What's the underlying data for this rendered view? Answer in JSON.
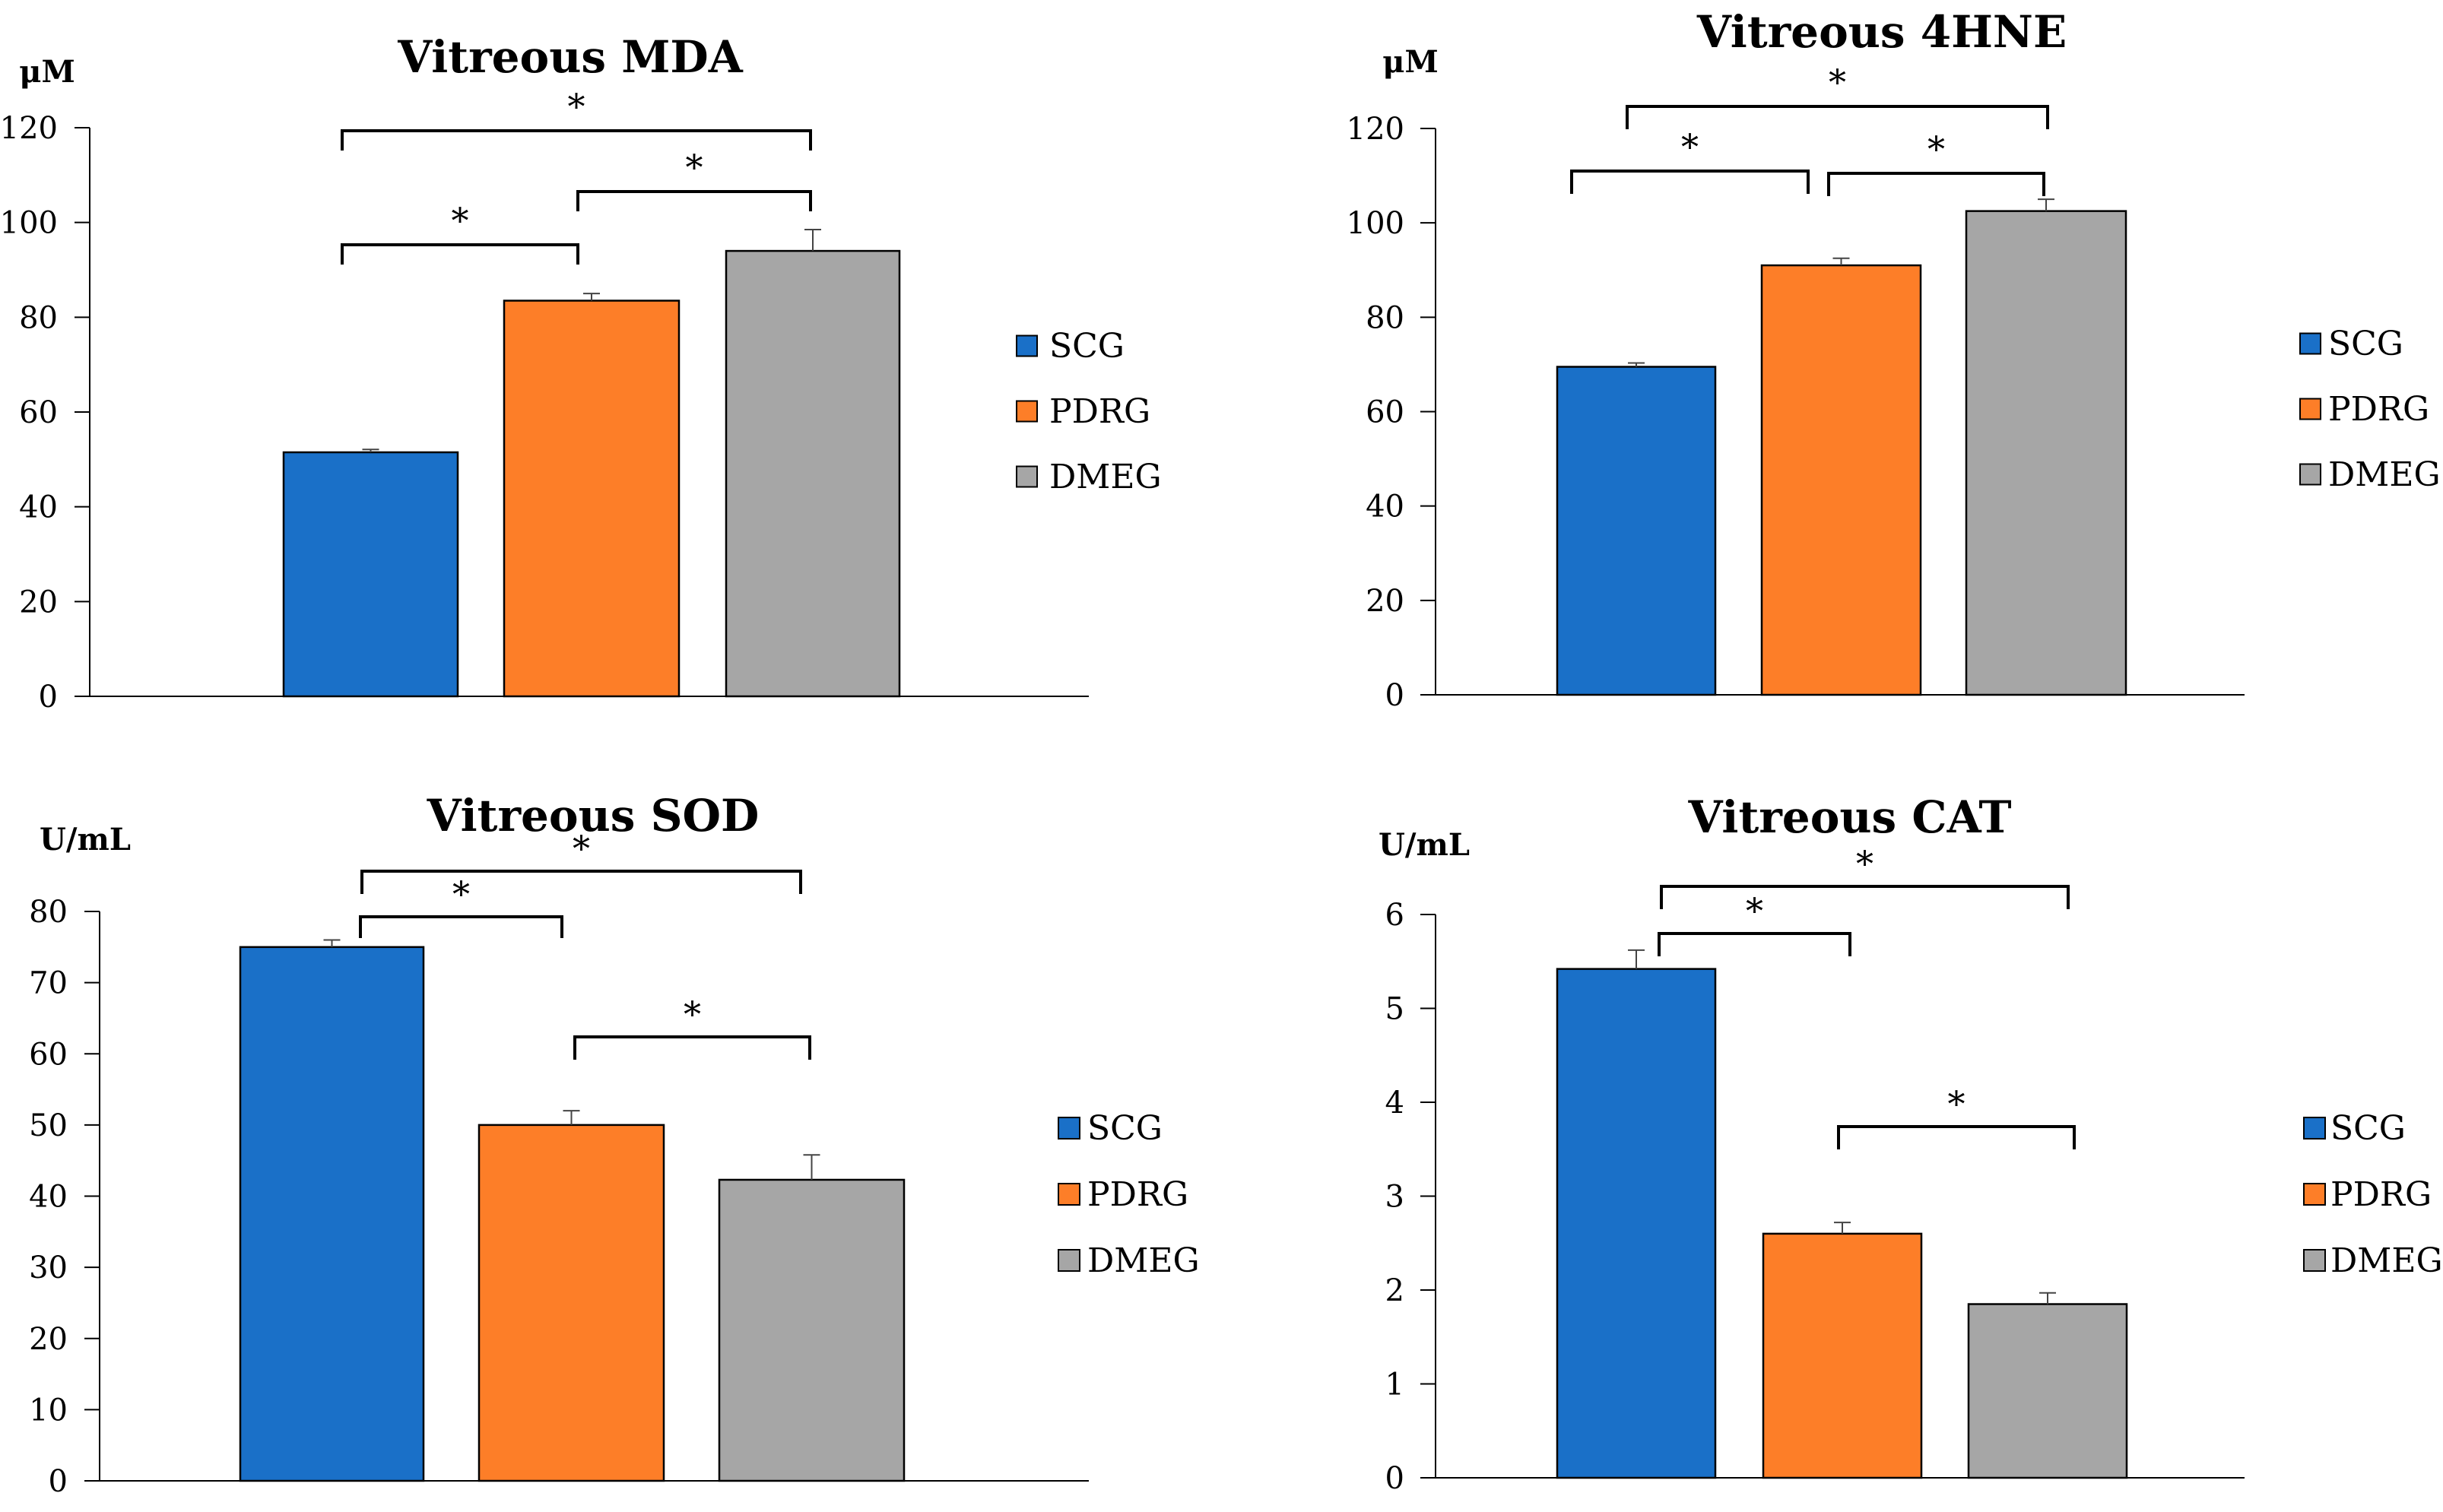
{
  "colors": {
    "SCG": "#1a70c8",
    "PDRG": "#fd7e28",
    "DMEG": "#a6a6a6"
  },
  "chart_data": [
    {
      "id": "mda",
      "type": "bar",
      "title": "Vitreous MDA",
      "ylabel": "μM",
      "ylim": [
        0,
        120
      ],
      "yticks": [
        "0",
        "20",
        "40",
        "60",
        "80",
        "100",
        "120"
      ],
      "categories": [
        "SCG",
        "PDRG",
        "DMEG"
      ],
      "values": [
        51.5,
        83.5,
        94
      ],
      "errors": [
        0.6,
        1.5,
        4.5
      ],
      "legend": [
        "SCG",
        "PDRG",
        "DMEG"
      ],
      "significance": [
        {
          "from": 0,
          "to": 1,
          "label": "*"
        },
        {
          "from": 1,
          "to": 2,
          "label": "*"
        },
        {
          "from": 0,
          "to": 2,
          "label": "*"
        }
      ]
    },
    {
      "id": "hne",
      "type": "bar",
      "title": "Vitreous 4HNE",
      "ylabel": "μM",
      "ylim": [
        0,
        120
      ],
      "yticks": [
        "0",
        "20",
        "40",
        "60",
        "80",
        "100",
        "120"
      ],
      "categories": [
        "SCG",
        "PDRG",
        "DMEG"
      ],
      "values": [
        69.5,
        91,
        102.5
      ],
      "errors": [
        0.8,
        1.5,
        2.5
      ],
      "legend": [
        "SCG",
        "PDRG",
        "DMEG"
      ],
      "significance": [
        {
          "from": 0,
          "to": 1,
          "label": "*"
        },
        {
          "from": 1,
          "to": 2,
          "label": "*"
        },
        {
          "from": 0,
          "to": 2,
          "label": "*"
        }
      ]
    },
    {
      "id": "sod",
      "type": "bar",
      "title": "Vitreous SOD",
      "ylabel": "U/mL",
      "ylim": [
        0,
        80
      ],
      "yticks": [
        "0",
        "10",
        "20",
        "30",
        "40",
        "50",
        "60",
        "70",
        "80"
      ],
      "categories": [
        "SCG",
        "PDRG",
        "DMEG"
      ],
      "values": [
        75,
        50,
        42.3
      ],
      "errors": [
        1.0,
        2.0,
        3.5
      ],
      "legend": [
        "SCG",
        "PDRG",
        "DMEG"
      ],
      "significance": [
        {
          "from": 0,
          "to": 1,
          "label": "*"
        },
        {
          "from": 1,
          "to": 2,
          "label": "*"
        },
        {
          "from": 0,
          "to": 2,
          "label": "*"
        }
      ]
    },
    {
      "id": "cat",
      "type": "bar",
      "title": "Vitreous CAT",
      "ylabel": "U/mL",
      "ylim": [
        0,
        6
      ],
      "yticks": [
        "0",
        "1",
        "2",
        "3",
        "4",
        "5",
        "6"
      ],
      "categories": [
        "SCG",
        "PDRG",
        "DMEG"
      ],
      "values": [
        5.42,
        2.6,
        1.85
      ],
      "errors": [
        0.2,
        0.12,
        0.12
      ],
      "legend": [
        "SCG",
        "PDRG",
        "DMEG"
      ],
      "significance": [
        {
          "from": 0,
          "to": 1,
          "label": "*"
        },
        {
          "from": 1,
          "to": 2,
          "label": "*"
        },
        {
          "from": 0,
          "to": 2,
          "label": "*"
        }
      ]
    }
  ]
}
